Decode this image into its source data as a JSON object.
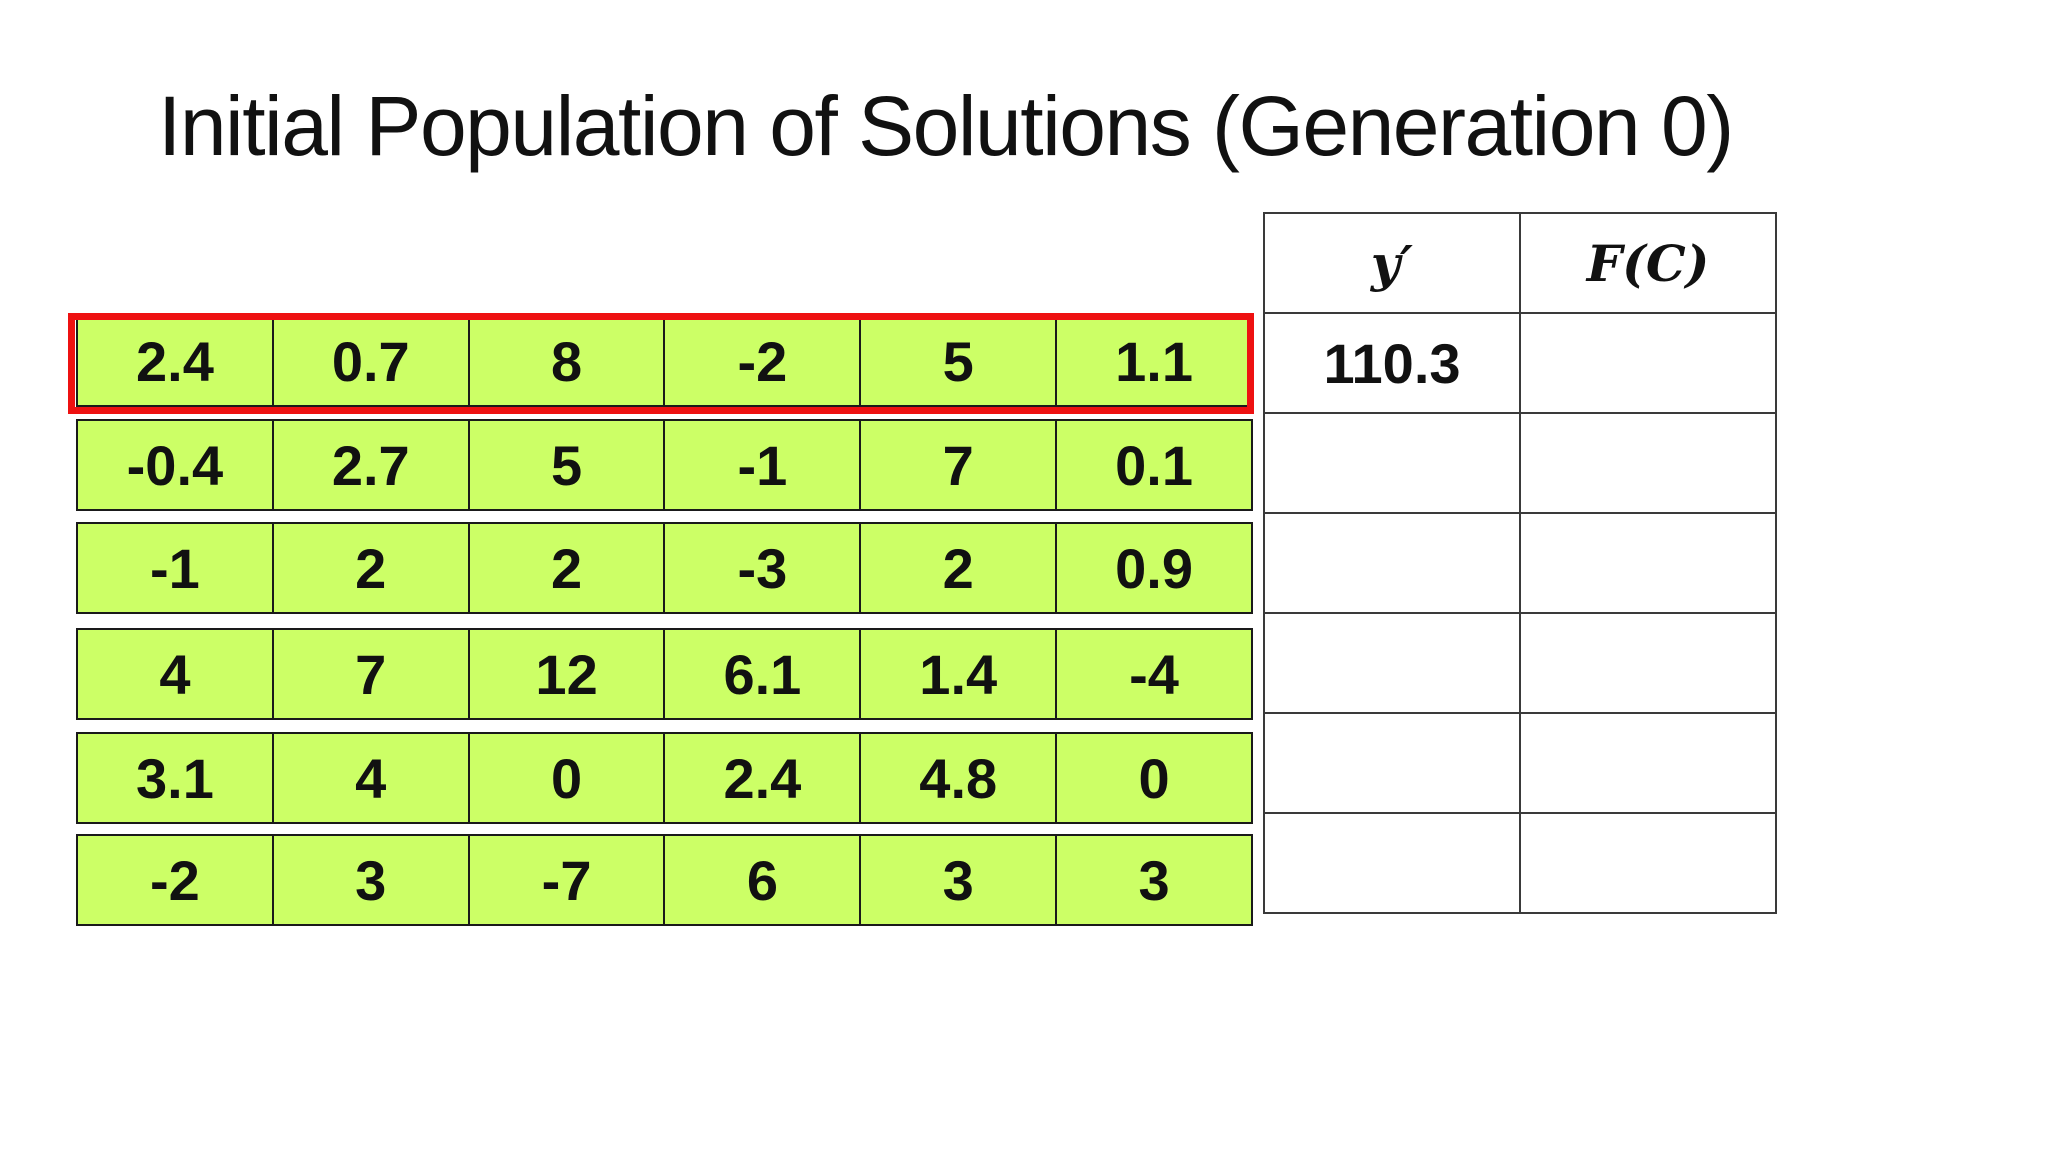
{
  "title": "Initial Population of Solutions (Generation 0)",
  "population": [
    [
      "2.4",
      "0.7",
      "8",
      "-2",
      "5",
      "1.1"
    ],
    [
      "-0.4",
      "2.7",
      "5",
      "-1",
      "7",
      "0.1"
    ],
    [
      "-1",
      "2",
      "2",
      "-3",
      "2",
      "0.9"
    ],
    [
      "4",
      "7",
      "12",
      "6.1",
      "1.4",
      "-4"
    ],
    [
      "3.1",
      "4",
      "0",
      "2.4",
      "4.8",
      "0"
    ],
    [
      "-2",
      "3",
      "-7",
      "6",
      "3",
      "3"
    ]
  ],
  "evaluation": {
    "headers": [
      "y′",
      "F(C)"
    ],
    "rows": [
      [
        "110.3",
        ""
      ],
      [
        "",
        ""
      ],
      [
        "",
        ""
      ],
      [
        "",
        ""
      ],
      [
        "",
        ""
      ],
      [
        "",
        ""
      ]
    ]
  },
  "colors": {
    "cell_fill": "#ccff66",
    "highlight_border": "#ee1111",
    "text": "#111111"
  }
}
